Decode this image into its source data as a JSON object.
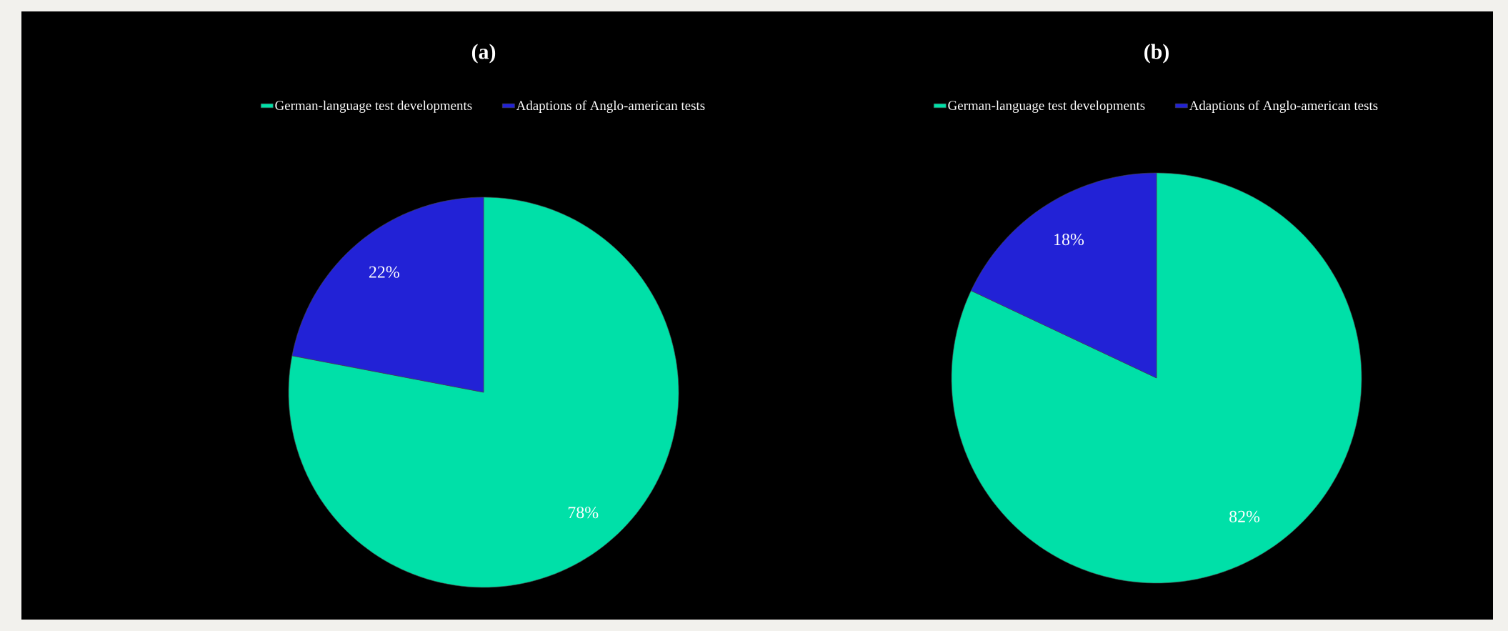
{
  "chart_data": [
    {
      "type": "pie",
      "title": "(a)",
      "categories": [
        "German-language test developments",
        "Adaptions of Anglo-american tests"
      ],
      "values": [
        78,
        22
      ],
      "colors": [
        "#00e0a8",
        "#2222d6"
      ],
      "value_labels": [
        "78%",
        "22%"
      ],
      "legend": "top"
    },
    {
      "type": "pie",
      "title": "(b)",
      "categories": [
        "German-language test developments",
        "Adaptions of Anglo-american tests"
      ],
      "values": [
        82,
        18
      ],
      "colors": [
        "#00e0a8",
        "#2222d6"
      ],
      "value_labels": [
        "82%",
        "18%"
      ],
      "legend": "top"
    }
  ]
}
